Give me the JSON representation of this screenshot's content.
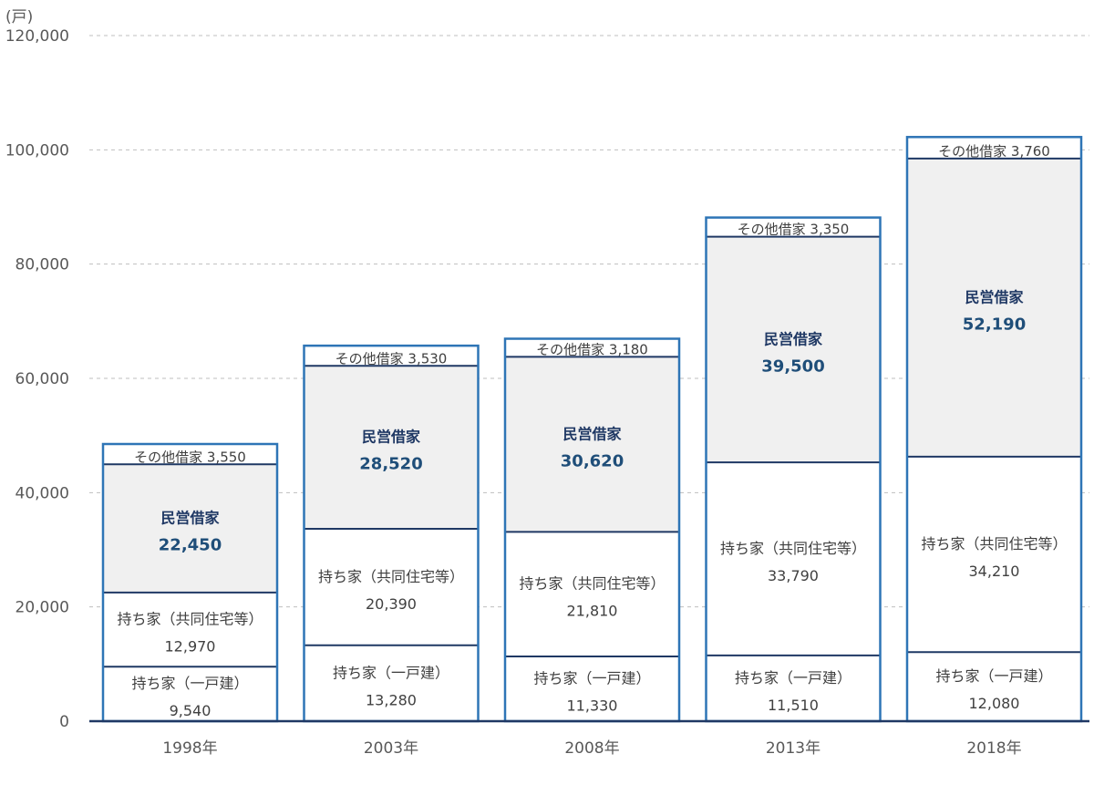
{
  "chart_data": {
    "type": "bar",
    "stacked": true,
    "unit_label": "(戸)",
    "categories": [
      "1998年",
      "2003年",
      "2008年",
      "2013年",
      "2018年"
    ],
    "series": [
      {
        "name": "持ち家（一戸建）",
        "values": [
          9540,
          13280,
          11330,
          11510,
          12080
        ],
        "fill": "#ffffff",
        "emphasis": false
      },
      {
        "name": "持ち家（共同住宅等）",
        "values": [
          12970,
          20390,
          21810,
          33790,
          34210
        ],
        "fill": "#ffffff",
        "emphasis": false
      },
      {
        "name": "民営借家",
        "values": [
          22450,
          28520,
          30620,
          39500,
          52190
        ],
        "fill": "#f0f0f0",
        "emphasis": true
      },
      {
        "name": "その他借家",
        "values": [
          3550,
          3530,
          3180,
          3350,
          3760
        ],
        "fill": "#ffffff",
        "emphasis": false,
        "inline": true
      }
    ],
    "ylim": [
      0,
      120000
    ],
    "yticks": [
      0,
      20000,
      40000,
      60000,
      80000,
      100000,
      120000
    ],
    "ytick_labels": [
      "0",
      "20,000",
      "40,000",
      "60,000",
      "80,000",
      "100,000",
      "120,000"
    ],
    "grid": true,
    "legend": "none"
  },
  "colors": {
    "bar_border": "#2e75b6",
    "divider": "#1f3864",
    "gridline": "#bfbfbf",
    "baseline": "#1f3864"
  }
}
